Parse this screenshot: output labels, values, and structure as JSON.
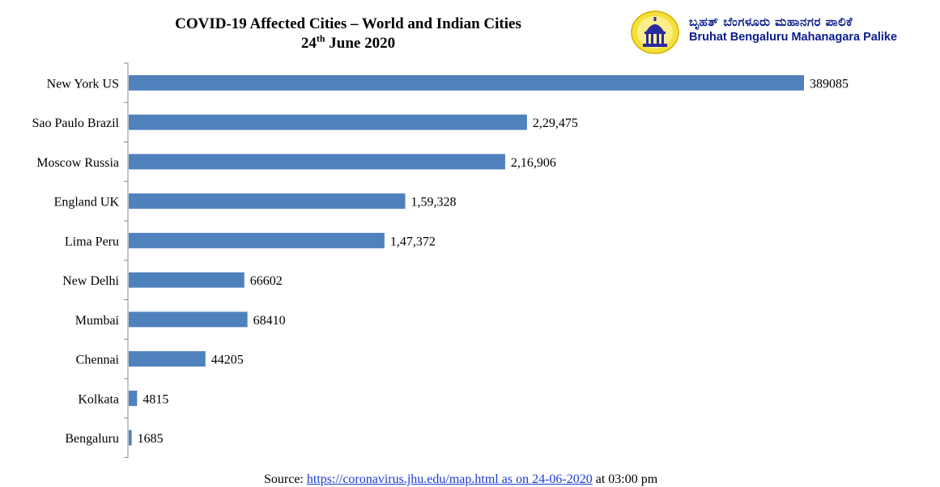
{
  "header": {
    "title_line1": "COVID-19 Affected Cities – World and Indian Cities",
    "title_date_day": "24",
    "title_date_suffix": "th",
    "title_date_rest": " June 2020"
  },
  "org": {
    "name_kannada": "ಬೃಹತ್ ಬೆಂಗಳೂರು ಮಹಾನಗರ ಪಾಲಿಕೆ",
    "name_english": "Bruhat Bengaluru Mahanagara Palike",
    "logo_icon": "bbmp-logo-icon",
    "color": "#0a1e8a"
  },
  "source": {
    "prefix": "Source: ",
    "link_text": "https://coronavirus.jhu.edu/map.html as on 24-06-2020",
    "suffix": " at 03:00 pm"
  },
  "chart_data": {
    "type": "bar",
    "orientation": "horizontal",
    "categories": [
      "New York US",
      "Sao Paulo Brazil",
      "Moscow Russia",
      "England UK",
      "Lima Peru",
      "New Delhi",
      "Mumbai",
      "Chennai",
      "Kolkata",
      "Bengaluru"
    ],
    "values": [
      389085,
      229475,
      216906,
      159328,
      147372,
      66602,
      68410,
      44205,
      4815,
      1685
    ],
    "data_labels": [
      "389085",
      "2,29,475",
      "2,16,906",
      "1,59,328",
      "1,47,372",
      "66602",
      "68410",
      "44205",
      "4815",
      "1685"
    ],
    "bar_color": "#4f81bd",
    "xlim": [
      0,
      389085
    ],
    "grid": false,
    "legend": "none"
  }
}
